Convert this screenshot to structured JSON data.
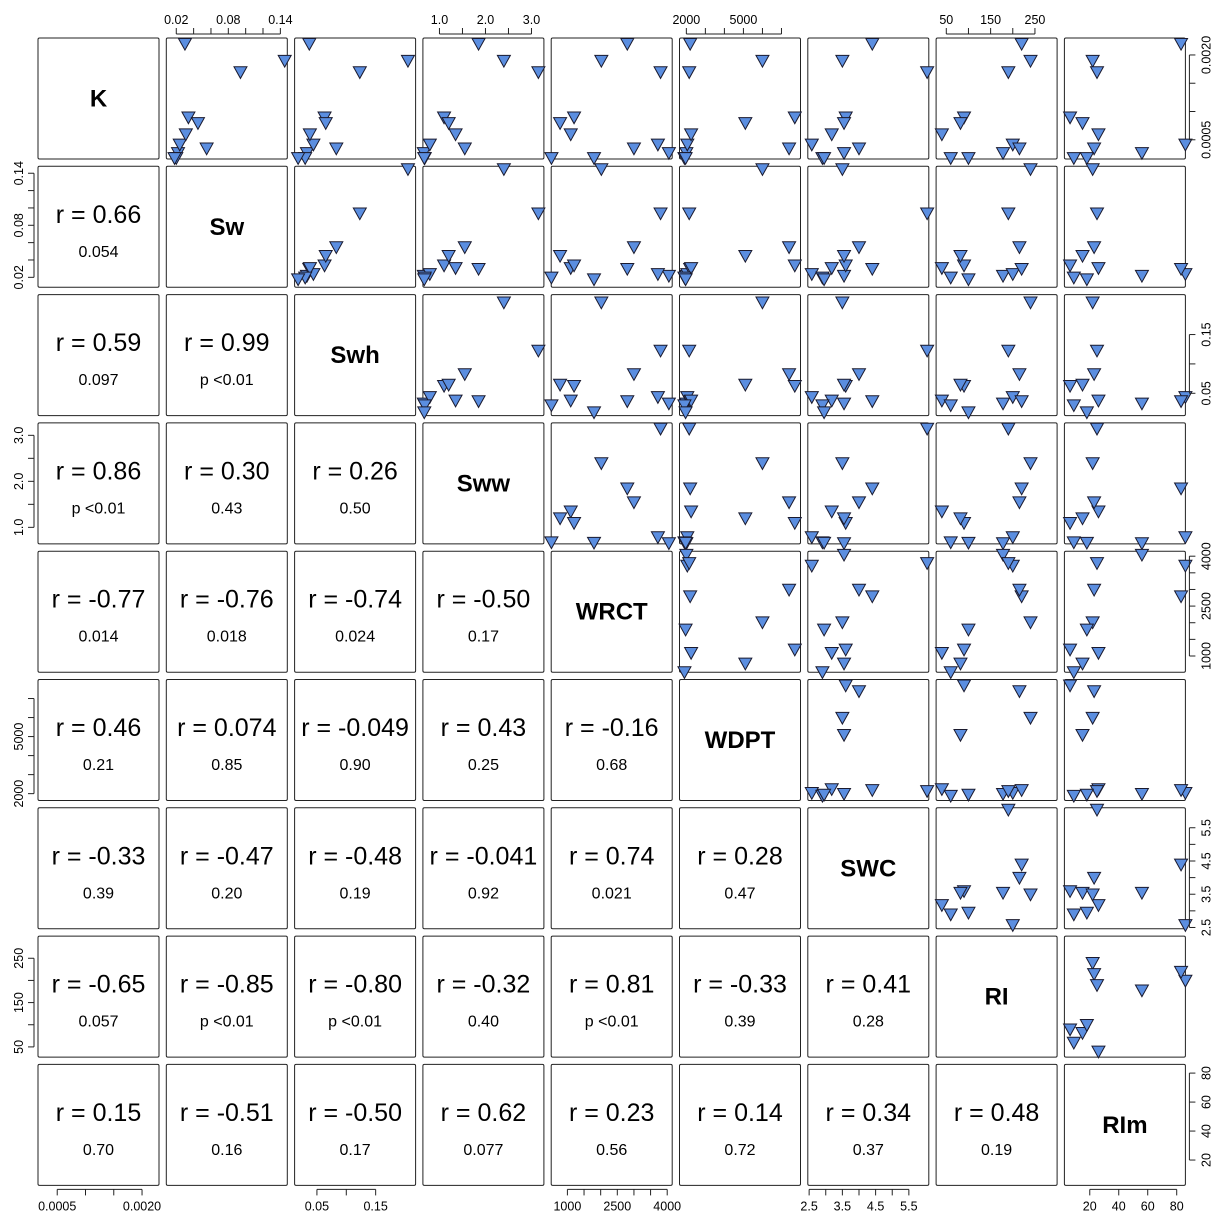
{
  "chart_data": {
    "type": "scatter-matrix",
    "variables": [
      "K",
      "Sw",
      "Swh",
      "Sww",
      "WRCT",
      "WDPT",
      "SWC",
      "RI",
      "RIm"
    ],
    "colors": {
      "marker_fill": "#5b8ee0",
      "marker_edge": "#1a1a2e",
      "panel_border": "#222222"
    },
    "marker": "triangle-down",
    "axes": {
      "K": {
        "lim": [
          0.00016,
          0.0023
        ],
        "ticks": [
          0.0005,
          0.001,
          0.0015,
          0.002
        ],
        "labels": [
          "0.0005",
          "",
          "",
          "0.0020"
        ]
      },
      "Sw": {
        "lim": [
          0.0085,
          0.148
        ],
        "ticks": [
          0.02,
          0.04,
          0.06,
          0.08,
          0.1,
          0.12,
          0.14
        ],
        "labels": [
          "0.02",
          "",
          "",
          "0.08",
          "",
          "",
          "0.14"
        ]
      },
      "Swh": {
        "lim": [
          0.012,
          0.218
        ],
        "ticks": [
          0.05,
          0.1,
          0.15
        ],
        "labels": [
          "0.05",
          "",
          "0.15"
        ]
      },
      "Sww": {
        "lim": [
          0.64,
          3.27
        ],
        "ticks": [
          1.0,
          1.5,
          2.0,
          2.5,
          3.0
        ],
        "labels": [
          "1.0",
          "",
          "2.0",
          "",
          "3.0"
        ]
      },
      "WRCT": {
        "lim": [
          513,
          4150
        ],
        "ticks": [
          1000,
          1500,
          2000,
          2500,
          3000,
          3500,
          4000
        ],
        "labels": [
          "1000",
          "",
          "",
          "2500",
          "",
          "",
          "4000"
        ]
      },
      "WDPT": {
        "lim": [
          1640,
          8000
        ],
        "ticks": [
          2000,
          3000,
          4000,
          5000,
          6000,
          7000
        ],
        "labels": [
          "2000",
          "",
          "",
          "5000",
          "",
          ""
        ]
      },
      "SWC": {
        "lim": [
          2.46,
          6.1
        ],
        "ticks": [
          2.5,
          3.0,
          3.5,
          4.0,
          4.5,
          5.0,
          5.5
        ],
        "labels": [
          "2.5",
          "",
          "3.5",
          "",
          "4.5",
          "",
          "5.5"
        ]
      },
      "RI": {
        "lim": [
          27,
          300
        ],
        "ticks": [
          50,
          100,
          150,
          200,
          250
        ],
        "labels": [
          "50",
          "",
          "150",
          "",
          "250"
        ]
      },
      "RIm": {
        "lim": [
          2.5,
          86
        ],
        "ticks": [
          20,
          40,
          60,
          80
        ],
        "labels": [
          "20",
          "40",
          "60",
          "80"
        ]
      }
    },
    "observations": [
      {
        "K": 0.00027,
        "Sw": 0.022,
        "Swh": 0.033,
        "Sww": 0.66,
        "WRCT": 4050,
        "WDPT": 2000,
        "SWC": 3.55,
        "RI": 178,
        "RIm": 56
      },
      {
        "K": 0.00042,
        "Sw": 0.024,
        "Swh": 0.044,
        "Sww": 0.79,
        "WRCT": 3720,
        "WDPT": 2050,
        "SWC": 2.58,
        "RI": 200,
        "RIm": 86
      },
      {
        "K": 0.0022,
        "Sw": 0.03,
        "Swh": 0.037,
        "Sww": 1.85,
        "WRCT": 2800,
        "WDPT": 2200,
        "SWC": 4.4,
        "RI": 220,
        "RIm": 83
      },
      {
        "K": 0.0006,
        "Sw": 0.031,
        "Swh": 0.038,
        "Sww": 1.35,
        "WRCT": 1100,
        "WDPT": 2250,
        "SWC": 3.18,
        "RI": 40,
        "RIm": 26
      },
      {
        "K": 0.0009,
        "Sw": 0.034,
        "Swh": 0.063,
        "Sww": 1.1,
        "WRCT": 1200,
        "WDPT": 7700,
        "SWC": 3.6,
        "RI": 90,
        "RIm": 6.4
      },
      {
        "K": 0.0008,
        "Sw": 0.045,
        "Swh": 0.065,
        "Sww": 1.2,
        "WRCT": 780,
        "WDPT": 5100,
        "SWC": 3.55,
        "RI": 82,
        "RIm": 15
      },
      {
        "K": 0.0019,
        "Sw": 0.145,
        "Swh": 0.205,
        "Sww": 2.4,
        "WRCT": 2020,
        "WDPT": 6000,
        "SWC": 3.5,
        "RI": 240,
        "RIm": 22
      },
      {
        "K": 0.00035,
        "Sw": 0.055,
        "Swh": 0.083,
        "Sww": 1.55,
        "WRCT": 3000,
        "WDPT": 7400,
        "SWC": 4.0,
        "RI": 215,
        "RIm": 23
      },
      {
        "K": 0.0017,
        "Sw": 0.094,
        "Swh": 0.123,
        "Sww": 3.15,
        "WRCT": 3800,
        "WDPT": 2150,
        "SWC": 6.05,
        "RI": 190,
        "RIm": 25
      },
      {
        "K": 0.00018,
        "Sw": 0.02,
        "Swh": 0.03,
        "Sww": 0.68,
        "WRCT": 520,
        "WDPT": 1900,
        "SWC": 2.9,
        "RI": 60,
        "RIm": 9
      },
      {
        "K": 0.00018,
        "Sw": 0.018,
        "Swh": 0.018,
        "Sww": 0.67,
        "WRCT": 1800,
        "WDPT": 1960,
        "SWC": 2.95,
        "RI": 100,
        "RIm": 18
      }
    ],
    "correlations": [
      {
        "row": "Sw",
        "col": "K",
        "r": "r = 0.66",
        "p": "0.054"
      },
      {
        "row": "Swh",
        "col": "K",
        "r": "r = 0.59",
        "p": "0.097"
      },
      {
        "row": "Swh",
        "col": "Sw",
        "r": "r = 0.99",
        "p": "p <0.01"
      },
      {
        "row": "Sww",
        "col": "K",
        "r": "r = 0.86",
        "p": "p <0.01"
      },
      {
        "row": "Sww",
        "col": "Sw",
        "r": "r = 0.30",
        "p": "0.43"
      },
      {
        "row": "Sww",
        "col": "Swh",
        "r": "r = 0.26",
        "p": "0.50"
      },
      {
        "row": "WRCT",
        "col": "K",
        "r": "r = -0.77",
        "p": "0.014"
      },
      {
        "row": "WRCT",
        "col": "Sw",
        "r": "r = -0.76",
        "p": "0.018"
      },
      {
        "row": "WRCT",
        "col": "Swh",
        "r": "r = -0.74",
        "p": "0.024"
      },
      {
        "row": "WRCT",
        "col": "Sww",
        "r": "r = -0.50",
        "p": "0.17"
      },
      {
        "row": "WDPT",
        "col": "K",
        "r": "r = 0.46",
        "p": "0.21"
      },
      {
        "row": "WDPT",
        "col": "Sw",
        "r": "r = 0.074",
        "p": "0.85"
      },
      {
        "row": "WDPT",
        "col": "Swh",
        "r": "r = -0.049",
        "p": "0.90"
      },
      {
        "row": "WDPT",
        "col": "Sww",
        "r": "r = 0.43",
        "p": "0.25"
      },
      {
        "row": "WDPT",
        "col": "WRCT",
        "r": "r = -0.16",
        "p": "0.68"
      },
      {
        "row": "SWC",
        "col": "K",
        "r": "r = -0.33",
        "p": "0.39"
      },
      {
        "row": "SWC",
        "col": "Sw",
        "r": "r = -0.47",
        "p": "0.20"
      },
      {
        "row": "SWC",
        "col": "Swh",
        "r": "r = -0.48",
        "p": "0.19"
      },
      {
        "row": "SWC",
        "col": "Sww",
        "r": "r = -0.041",
        "p": "0.92"
      },
      {
        "row": "SWC",
        "col": "WRCT",
        "r": "r = 0.74",
        "p": "0.021"
      },
      {
        "row": "SWC",
        "col": "WDPT",
        "r": "r = 0.28",
        "p": "0.47"
      },
      {
        "row": "RI",
        "col": "K",
        "r": "r = -0.65",
        "p": "0.057"
      },
      {
        "row": "RI",
        "col": "Sw",
        "r": "r = -0.85",
        "p": "p <0.01"
      },
      {
        "row": "RI",
        "col": "Swh",
        "r": "r = -0.80",
        "p": "p <0.01"
      },
      {
        "row": "RI",
        "col": "Sww",
        "r": "r = -0.32",
        "p": "0.40"
      },
      {
        "row": "RI",
        "col": "WRCT",
        "r": "r = 0.81",
        "p": "p <0.01"
      },
      {
        "row": "RI",
        "col": "WDPT",
        "r": "r = -0.33",
        "p": "0.39"
      },
      {
        "row": "RI",
        "col": "SWC",
        "r": "r = 0.41",
        "p": "0.28"
      },
      {
        "row": "RIm",
        "col": "K",
        "r": "r = 0.15",
        "p": "0.70"
      },
      {
        "row": "RIm",
        "col": "Sw",
        "r": "r = -0.51",
        "p": "0.16"
      },
      {
        "row": "RIm",
        "col": "Swh",
        "r": "r = -0.50",
        "p": "0.17"
      },
      {
        "row": "RIm",
        "col": "Sww",
        "r": "r = 0.62",
        "p": "0.077"
      },
      {
        "row": "RIm",
        "col": "WRCT",
        "r": "r = 0.23",
        "p": "0.56"
      },
      {
        "row": "RIm",
        "col": "WDPT",
        "r": "r = 0.14",
        "p": "0.72"
      },
      {
        "row": "RIm",
        "col": "SWC",
        "r": "r = 0.34",
        "p": "0.37"
      },
      {
        "row": "RIm",
        "col": "RI",
        "r": "r = 0.48",
        "p": "0.19"
      }
    ],
    "axis_label_placement": {
      "top": [
        "Sw",
        "Sww",
        "WDPT",
        "RI"
      ],
      "bottom": [
        "K",
        "Swh",
        "WRCT",
        "SWC",
        "RIm"
      ],
      "left": [
        "Sw",
        "Sww",
        "WDPT",
        "RI"
      ],
      "right": [
        "K",
        "Swh",
        "WRCT",
        "SWC",
        "RIm"
      ]
    }
  }
}
